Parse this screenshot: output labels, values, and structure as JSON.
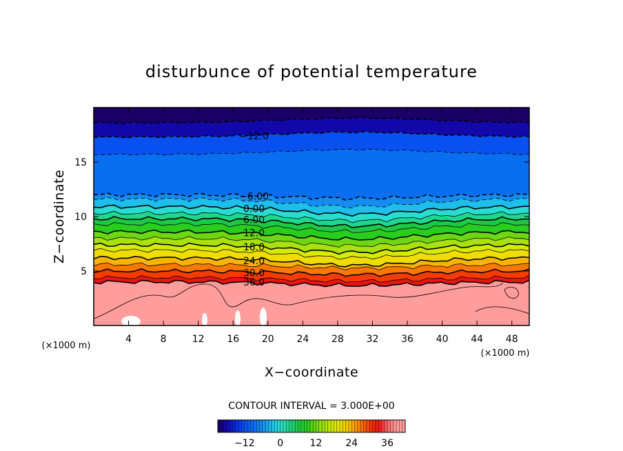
{
  "chart_data": {
    "type": "heatmap",
    "title": "disturbunce of potential temperature",
    "xlabel": "X−coordinate",
    "ylabel": "Z−coordinate",
    "x_unit": "(×1000 m)",
    "y_unit": "(×1000 m)",
    "x_range": [
      0,
      50
    ],
    "y_range": [
      0,
      20
    ],
    "x_ticks": [
      4,
      8,
      12,
      16,
      20,
      24,
      28,
      32,
      36,
      40,
      44,
      48
    ],
    "y_ticks": [
      5,
      10,
      15
    ],
    "contour_interval_text": "CONTOUR INTERVAL = 3.000E+00",
    "contour_interval": 3.0,
    "levels": [
      -18,
      -15,
      -12,
      -9,
      -6,
      -3,
      0,
      3,
      6,
      9,
      12,
      15,
      18,
      21,
      24,
      27,
      30,
      33,
      36,
      39
    ],
    "level_heights_km": [
      {
        "level": -18,
        "z": 18.6
      },
      {
        "level": -15,
        "z": 17.3
      },
      {
        "level": -12,
        "z": 17.3
      },
      {
        "level": -9,
        "z": 15.7
      },
      {
        "level": -6,
        "z": 12.0
      },
      {
        "level": -3,
        "z": 11.6
      },
      {
        "level": 0,
        "z": 10.9
      },
      {
        "level": 3,
        "z": 10.3
      },
      {
        "level": 6,
        "z": 9.8
      },
      {
        "level": 9,
        "z": 9.3
      },
      {
        "level": 12,
        "z": 8.6
      },
      {
        "level": 15,
        "z": 8.0
      },
      {
        "level": 18,
        "z": 7.4
      },
      {
        "level": 21,
        "z": 6.9
      },
      {
        "level": 24,
        "z": 6.2
      },
      {
        "level": 27,
        "z": 5.6
      },
      {
        "level": 30,
        "z": 5.0
      },
      {
        "level": 33,
        "z": 4.4
      },
      {
        "level": 36,
        "z": 4.0
      }
    ],
    "contour_labels": [
      "−12.0",
      "−6.00",
      "0.00",
      "6.00",
      "12.0",
      "18.0",
      "24.0",
      "30.0",
      "36.0"
    ],
    "colorbar_ticks": [
      "−12",
      "0",
      "12",
      "24",
      "36"
    ],
    "colorbar_tick_values": [
      -12,
      0,
      12,
      24,
      36
    ],
    "colorbar_range": [
      -21,
      42
    ],
    "colors": {
      "low": "#1a0066",
      "blue": "#0a6cf0",
      "cyan": "#22d8e6",
      "green": "#22cc22",
      "yellow": "#f0f000",
      "red": "#f01010",
      "salmon": "#ff9c9c"
    }
  }
}
